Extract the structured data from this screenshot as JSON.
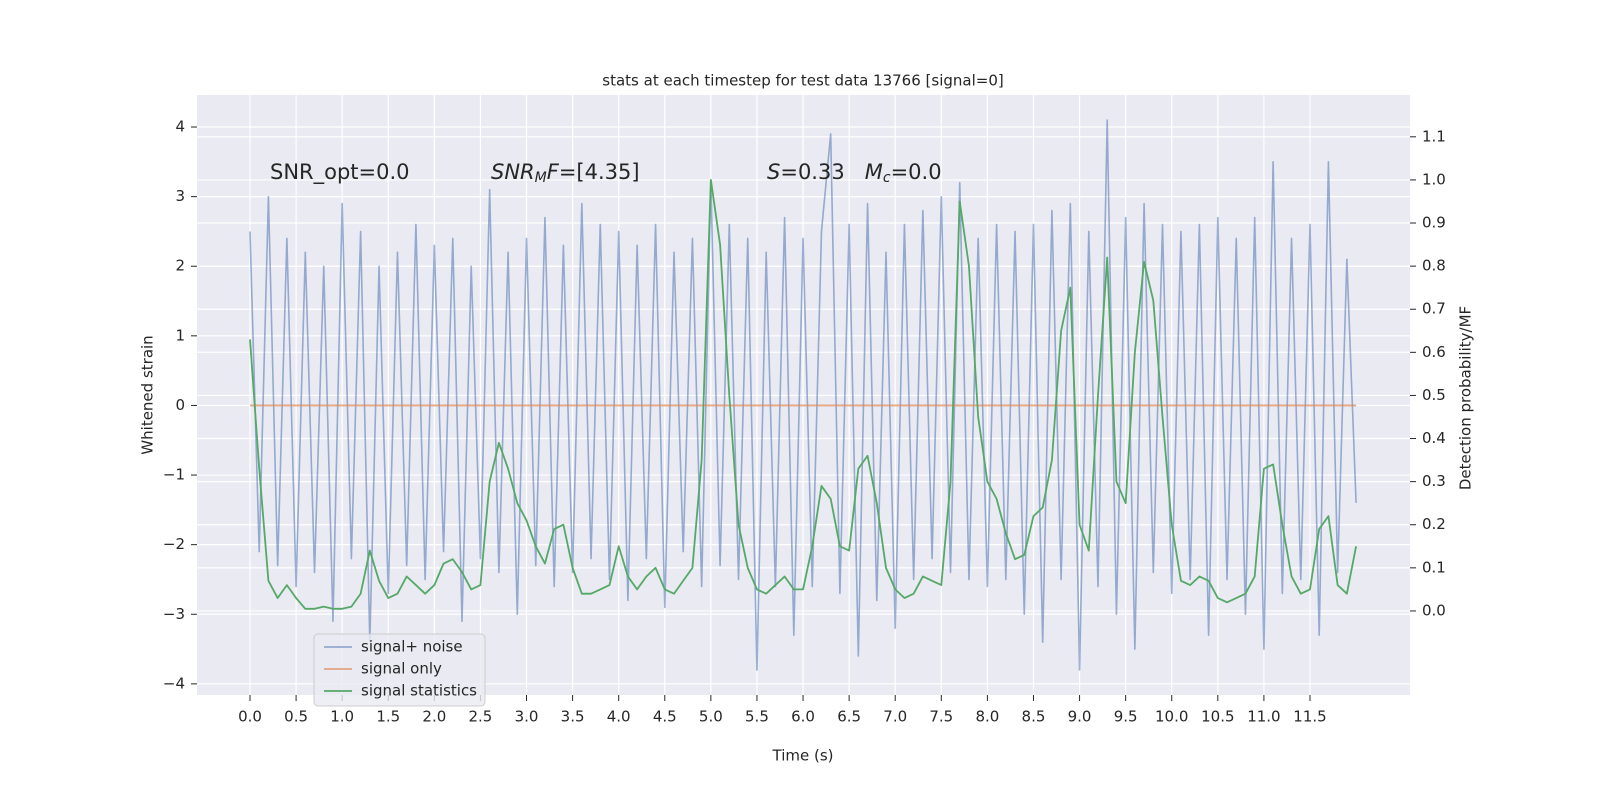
{
  "chart_data": {
    "type": "line",
    "title": "stats at each timestep for test data 13766 [signal=0]",
    "xlabel": "Time (s)",
    "ylabel": "Whitened strain",
    "y2label": "Detection probability/MF",
    "grid": true,
    "background": "#eaeaf2",
    "legend": "lower left",
    "annotations": [
      [
        {
          "text": "SNR_opt=0.0"
        }
      ],
      [
        {
          "text": "SNR",
          "style": "italic"
        },
        {
          "text": "M",
          "style": "italic-sub"
        },
        {
          "text": "F",
          "style": "italic"
        },
        {
          "text": "=[4.35]"
        }
      ],
      [
        {
          "text": "S",
          "style": "italic"
        },
        {
          "text": "=0.33   "
        },
        {
          "text": "M",
          "style": "italic"
        },
        {
          "text": "c",
          "style": "italic-sub"
        },
        {
          "text": "=0.0"
        }
      ]
    ],
    "xlim": [
      -0.575,
      12.585
    ],
    "ylim": [
      -4.16,
      4.46
    ],
    "y2lim": [
      -0.195,
      1.197
    ],
    "xticks": [
      {
        "value": 0,
        "label": "0.0"
      },
      0.5,
      {
        "value": 1,
        "label": "1.0"
      },
      1.5,
      {
        "value": 2,
        "label": "2.0"
      },
      2.5,
      {
        "value": 3,
        "label": "3.0"
      },
      3.5,
      {
        "value": 4,
        "label": "4.0"
      },
      4.5,
      {
        "value": 5,
        "label": "5.0"
      },
      5.5,
      {
        "value": 6,
        "label": "6.0"
      },
      6.5,
      {
        "value": 7,
        "label": "7.0"
      },
      7.5,
      {
        "value": 8,
        "label": "8.0"
      },
      8.5,
      {
        "value": 9,
        "label": "9.0"
      },
      9.5,
      {
        "value": 10,
        "label": "10.0"
      },
      10.5,
      {
        "value": 11,
        "label": "11.0"
      },
      11.5
    ],
    "yticks": [
      {
        "value": -4,
        "label": "−4"
      },
      {
        "value": -3,
        "label": "−3"
      },
      {
        "value": -2,
        "label": "−2"
      },
      {
        "value": -1,
        "label": "−1"
      },
      0,
      1,
      2,
      3,
      4
    ],
    "y2ticks": [
      {
        "value": 0,
        "label": "0.0"
      },
      0.1,
      0.2,
      0.3,
      0.4,
      0.5,
      0.6,
      0.7,
      0.8,
      0.9,
      {
        "value": 1,
        "label": "1.0"
      },
      1.1
    ],
    "x": [
      0,
      0.1,
      0.2,
      0.3,
      0.4,
      0.5,
      0.6,
      0.7,
      0.8,
      0.9,
      1,
      1.1,
      1.2,
      1.3,
      1.4,
      1.5,
      1.6,
      1.7,
      1.8,
      1.9,
      2,
      2.1,
      2.2,
      2.3,
      2.4,
      2.5,
      2.6,
      2.7,
      2.8,
      2.9,
      3,
      3.1,
      3.2,
      3.3,
      3.4,
      3.5,
      3.6,
      3.7,
      3.8,
      3.9,
      4,
      4.1,
      4.2,
      4.3,
      4.4,
      4.5,
      4.6,
      4.7,
      4.8,
      4.9,
      5,
      5.1,
      5.2,
      5.3,
      5.4,
      5.5,
      5.6,
      5.7,
      5.8,
      5.9,
      6,
      6.1,
      6.2,
      6.3,
      6.4,
      6.5,
      6.6,
      6.7,
      6.8,
      6.9,
      7,
      7.1,
      7.2,
      7.3,
      7.4,
      7.5,
      7.6,
      7.7,
      7.8,
      7.9,
      8,
      8.1,
      8.2,
      8.3,
      8.4,
      8.5,
      8.6,
      8.7,
      8.8,
      8.9,
      9,
      9.1,
      9.2,
      9.3,
      9.4,
      9.5,
      9.6,
      9.7,
      9.8,
      9.9,
      10,
      10.1,
      10.2,
      10.3,
      10.4,
      10.5,
      10.6,
      10.7,
      10.8,
      10.9,
      11,
      11.1,
      11.2,
      11.3,
      11.4,
      11.5,
      11.6,
      11.7,
      11.8,
      11.9,
      12
    ],
    "series": [
      {
        "name": "signal+ noise",
        "color": "#4c72b0",
        "values": [
          2.5,
          -2.1,
          3.0,
          -2.3,
          2.4,
          -2.6,
          2.2,
          -2.4,
          2.0,
          -3.1,
          2.9,
          -2.2,
          2.5,
          -3.4,
          2.0,
          -2.7,
          2.2,
          -2.3,
          2.6,
          -2.5,
          2.3,
          -2.1,
          2.4,
          -3.1,
          2.0,
          -2.2,
          3.1,
          -2.4,
          2.2,
          -3.0,
          2.4,
          -2.3,
          2.7,
          -2.6,
          2.3,
          -2.4,
          2.9,
          -2.2,
          2.6,
          -2.5,
          2.5,
          -2.8,
          2.3,
          -2.2,
          2.6,
          -2.9,
          2.2,
          -2.1,
          2.4,
          -2.6,
          3.2,
          -2.3,
          2.6,
          -2.5,
          2.4,
          -3.8,
          2.2,
          -2.6,
          2.7,
          -3.3,
          2.4,
          -2.6,
          2.5,
          3.9,
          -2.7,
          2.6,
          -3.6,
          2.9,
          -2.8,
          2.2,
          -3.2,
          2.6,
          -2.5,
          2.8,
          -2.2,
          3.0,
          -2.4,
          3.2,
          -2.5,
          2.4,
          -2.6,
          2.6,
          -2.5,
          2.5,
          -3.0,
          2.6,
          -3.4,
          2.8,
          -2.5,
          2.9,
          -3.8,
          2.5,
          -2.6,
          4.1,
          -3.0,
          2.7,
          -3.5,
          2.9,
          -2.4,
          2.6,
          -2.7,
          2.5,
          -2.5,
          2.6,
          -3.3,
          2.7,
          -2.5,
          2.4,
          -3.0,
          2.7,
          -3.5,
          3.5,
          -2.7,
          2.4,
          -2.5,
          2.6,
          -3.3,
          3.5,
          -2.4,
          2.1,
          -1.4
        ]
      },
      {
        "name": "signal only",
        "color": "#dd8452",
        "values": [
          0,
          0,
          0,
          0,
          0,
          0,
          0,
          0,
          0,
          0,
          0,
          0,
          0,
          0,
          0,
          0,
          0,
          0,
          0,
          0,
          0,
          0,
          0,
          0,
          0,
          0,
          0,
          0,
          0,
          0,
          0,
          0,
          0,
          0,
          0,
          0,
          0,
          0,
          0,
          0,
          0,
          0,
          0,
          0,
          0,
          0,
          0,
          0,
          0,
          0,
          0,
          0,
          0,
          0,
          0,
          0,
          0,
          0,
          0,
          0,
          0,
          0,
          0,
          0,
          0,
          0,
          0,
          0,
          0,
          0,
          0,
          0,
          0,
          0,
          0,
          0,
          0,
          0,
          0,
          0,
          0,
          0,
          0,
          0,
          0,
          0,
          0,
          0,
          0,
          0,
          0,
          0,
          0,
          0,
          0,
          0,
          0,
          0,
          0,
          0,
          0,
          0,
          0,
          0,
          0,
          0,
          0,
          0,
          0,
          0,
          0,
          0,
          0,
          0,
          0,
          0,
          0,
          0,
          0,
          0,
          0
        ]
      },
      {
        "name": "signal statistics",
        "color": "#55a868",
        "axis": "y2",
        "values": [
          0.63,
          0.33,
          0.07,
          0.03,
          0.06,
          0.03,
          0.005,
          0.005,
          0.01,
          0.005,
          0.005,
          0.01,
          0.04,
          0.14,
          0.07,
          0.03,
          0.04,
          0.08,
          0.06,
          0.04,
          0.06,
          0.11,
          0.12,
          0.09,
          0.05,
          0.06,
          0.3,
          0.39,
          0.33,
          0.25,
          0.21,
          0.15,
          0.11,
          0.19,
          0.2,
          0.1,
          0.04,
          0.04,
          0.05,
          0.06,
          0.15,
          0.08,
          0.05,
          0.08,
          0.1,
          0.05,
          0.04,
          0.07,
          0.1,
          0.35,
          1.0,
          0.85,
          0.5,
          0.2,
          0.1,
          0.05,
          0.04,
          0.06,
          0.08,
          0.05,
          0.05,
          0.15,
          0.29,
          0.26,
          0.15,
          0.14,
          0.33,
          0.36,
          0.25,
          0.1,
          0.05,
          0.03,
          0.04,
          0.08,
          0.07,
          0.06,
          0.3,
          0.95,
          0.8,
          0.45,
          0.3,
          0.26,
          0.18,
          0.12,
          0.13,
          0.22,
          0.24,
          0.35,
          0.65,
          0.75,
          0.2,
          0.14,
          0.5,
          0.82,
          0.3,
          0.25,
          0.6,
          0.81,
          0.72,
          0.45,
          0.2,
          0.07,
          0.06,
          0.08,
          0.07,
          0.03,
          0.02,
          0.03,
          0.04,
          0.08,
          0.33,
          0.34,
          0.2,
          0.08,
          0.04,
          0.05,
          0.19,
          0.22,
          0.06,
          0.04,
          0.15
        ]
      }
    ]
  }
}
